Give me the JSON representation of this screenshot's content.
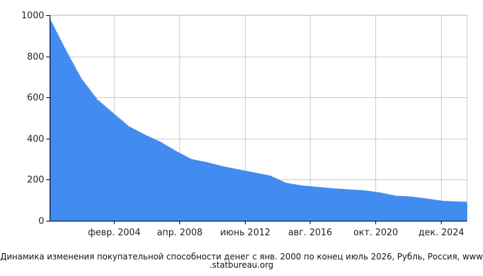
{
  "chart_data": {
    "type": "area",
    "title": "",
    "xlabel": "",
    "ylabel": "",
    "ylim": [
      0,
      1000
    ],
    "y_ticks": [
      0,
      200,
      400,
      600,
      800,
      1000
    ],
    "x_ticks": [
      "февр. 2004",
      "апр. 2008",
      "июнь 2012",
      "авг. 2016",
      "окт. 2020",
      "дек. 2024"
    ],
    "grid": true,
    "legend": "none",
    "color": "#428bf0",
    "series": [
      {
        "x": [
          "2000-01",
          "2001-01",
          "2002-01",
          "2003-01",
          "2004-01",
          "2005-01",
          "2006-01",
          "2007-01",
          "2008-01",
          "2009-01",
          "2010-01",
          "2011-01",
          "2012-01",
          "2013-01",
          "2014-01",
          "2015-01",
          "2016-01",
          "2017-01",
          "2018-01",
          "2019-01",
          "2020-01",
          "2021-01",
          "2022-01",
          "2023-01",
          "2024-01",
          "2025-01",
          "2026-07"
        ],
        "values": [
          980,
          830,
          690,
          590,
          525,
          460,
          420,
          385,
          340,
          300,
          285,
          265,
          250,
          235,
          220,
          185,
          172,
          165,
          158,
          153,
          148,
          138,
          122,
          118,
          108,
          97,
          92
        ]
      }
    ]
  },
  "caption": {
    "line1": "Динамика изменения покупательной способности денег с янв. 2000 по конец июль 2026, Рубль, Россия, www",
    "line2": ".statbureau.org"
  }
}
